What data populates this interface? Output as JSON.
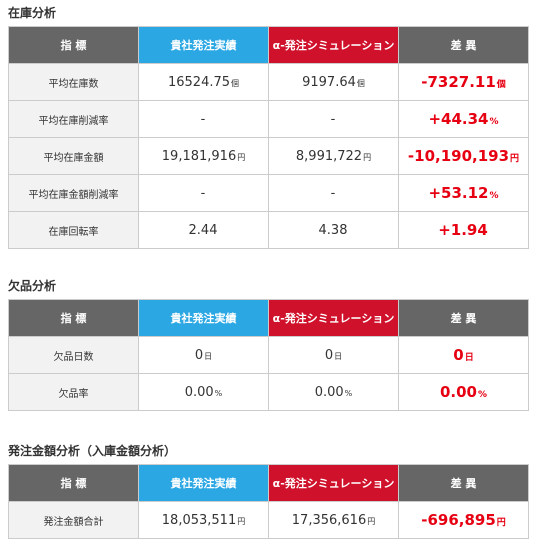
{
  "headers": {
    "metric": "指 標",
    "actual": "貴社発注実績",
    "simulation": "α-発注シミュレーション",
    "diff": "差 異"
  },
  "sections": {
    "inventory": {
      "title": "在庫分析",
      "rows": [
        {
          "label": "平均在庫数",
          "actual": "16524.75",
          "actual_unit": "個",
          "sim": "9197.64",
          "sim_unit": "個",
          "diff": "-7327.11",
          "diff_unit": "個"
        },
        {
          "label": "平均在庫削減率",
          "actual": "-",
          "actual_unit": "",
          "sim": "-",
          "sim_unit": "",
          "diff": "+44.34",
          "diff_unit": "%"
        },
        {
          "label": "平均在庫金額",
          "actual": "19,181,916",
          "actual_unit": "円",
          "sim": "8,991,722",
          "sim_unit": "円",
          "diff": "-10,190,193",
          "diff_unit": "円"
        },
        {
          "label": "平均在庫金額削減率",
          "actual": "-",
          "actual_unit": "",
          "sim": "-",
          "sim_unit": "",
          "diff": "+53.12",
          "diff_unit": "%"
        },
        {
          "label": "在庫回転率",
          "actual": "2.44",
          "actual_unit": "",
          "sim": "4.38",
          "sim_unit": "",
          "diff": "+1.94",
          "diff_unit": ""
        }
      ]
    },
    "stockout": {
      "title": "欠品分析",
      "rows": [
        {
          "label": "欠品日数",
          "actual": "0",
          "actual_unit": "日",
          "sim": "0",
          "sim_unit": "日",
          "diff": "0",
          "diff_unit": "日"
        },
        {
          "label": "欠品率",
          "actual": "0.00",
          "actual_unit": "%",
          "sim": "0.00",
          "sim_unit": "%",
          "diff": "0.00",
          "diff_unit": "%"
        }
      ]
    },
    "order": {
      "title": "発注金額分析（入庫金額分析）",
      "rows": [
        {
          "label": "発注金額合計",
          "actual": "18,053,511",
          "actual_unit": "円",
          "sim": "17,356,616",
          "sim_unit": "円",
          "diff": "-696,895",
          "diff_unit": "円"
        }
      ]
    }
  },
  "colors": {
    "header_gray": "#666666",
    "header_blue": "#2ba7e4",
    "header_red": "#d0112b",
    "diff_red": "#e60012"
  }
}
